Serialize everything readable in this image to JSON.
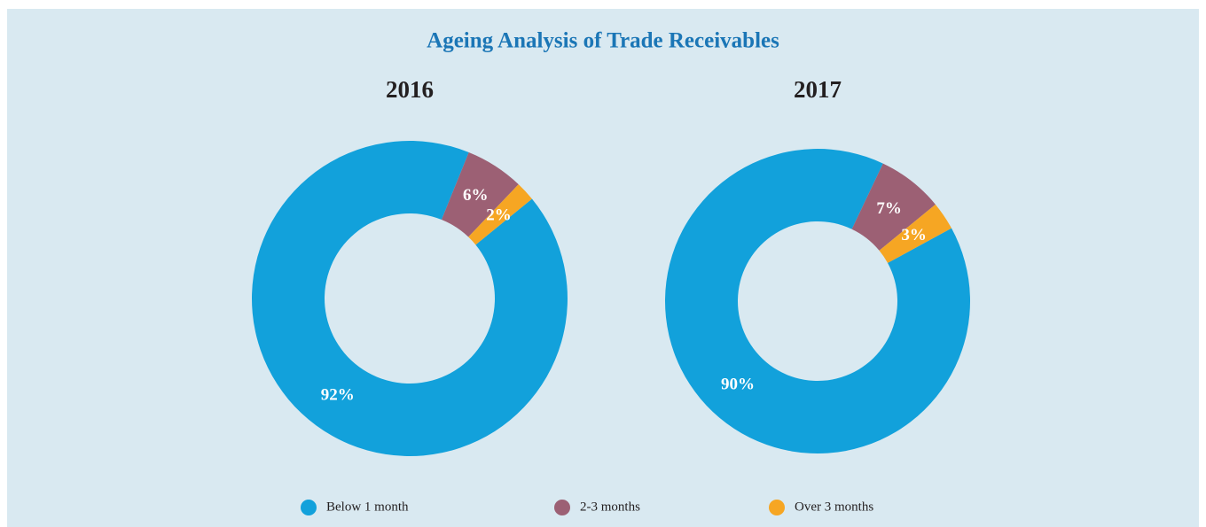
{
  "title": "Ageing Analysis of Trade Receivables",
  "chart_data": [
    {
      "type": "pie",
      "title": "2016",
      "categories": [
        "Below 1 month",
        "2-3 months",
        "Over 3 months"
      ],
      "values": [
        92,
        6,
        2
      ],
      "value_labels": [
        "92%",
        "6%",
        "2%"
      ],
      "colors": [
        "#12a1db",
        "#9c6074",
        "#f6a623"
      ]
    },
    {
      "type": "pie",
      "title": "2017",
      "categories": [
        "Below 1 month",
        "2-3 months",
        "Over 3 months"
      ],
      "values": [
        90,
        7,
        3
      ],
      "value_labels": [
        "90%",
        "7%",
        "3%"
      ],
      "colors": [
        "#12a1db",
        "#9c6074",
        "#f6a623"
      ]
    }
  ]
}
